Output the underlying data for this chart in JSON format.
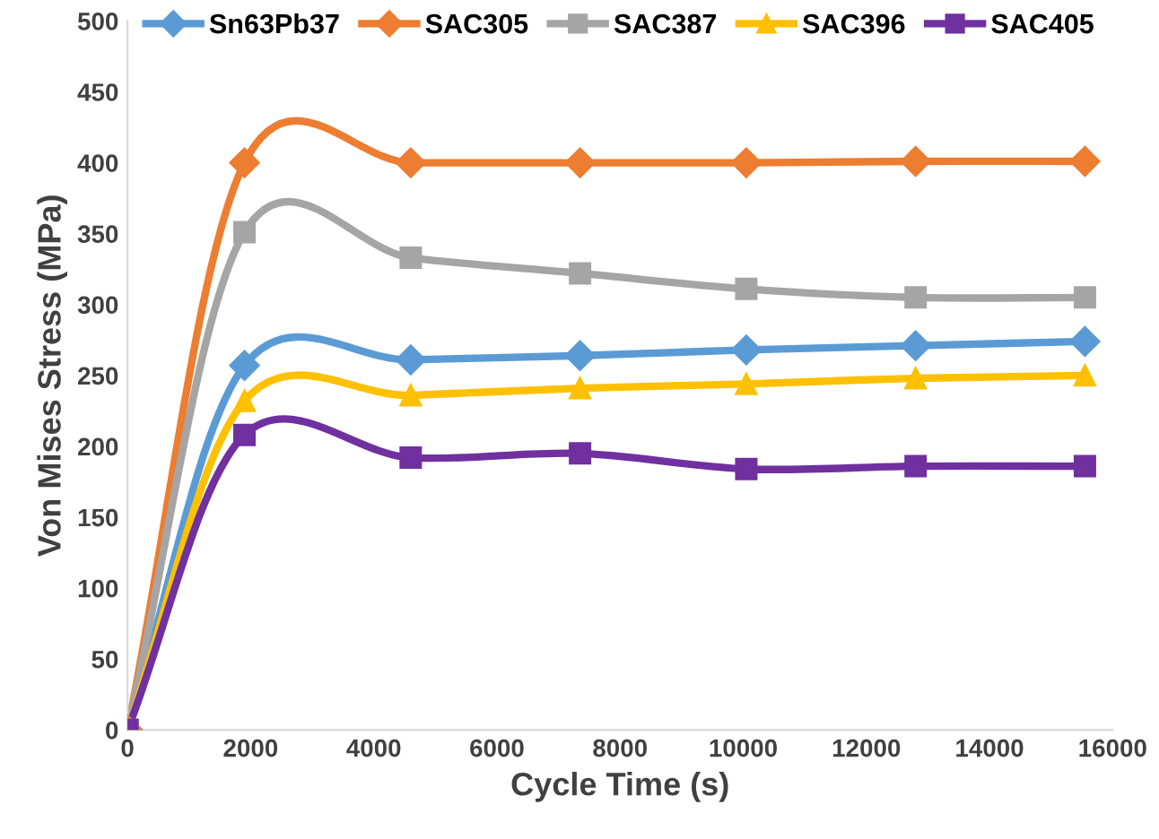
{
  "chart_data": {
    "type": "line",
    "xlabel": "Cycle Time (s)",
    "ylabel": "Von Mises Stress (MPa)",
    "x": [
      0,
      1900,
      4600,
      7350,
      10050,
      12800,
      15550
    ],
    "series": [
      {
        "name": "Sn63Pb37",
        "color": "#5b9bd5",
        "marker": "diamond",
        "values": [
          0,
          257,
          261,
          264,
          268,
          271,
          274
        ]
      },
      {
        "name": "SAC305",
        "color": "#ed7d31",
        "marker": "diamond",
        "values": [
          0,
          400,
          400,
          400,
          400,
          401,
          401
        ]
      },
      {
        "name": "SAC387",
        "color": "#a5a5a5",
        "marker": "square",
        "values": [
          0,
          351,
          333,
          322,
          311,
          305,
          305
        ]
      },
      {
        "name": "SAC396",
        "color": "#ffc000",
        "marker": "triangle",
        "values": [
          0,
          232,
          236,
          241,
          244,
          248,
          250
        ]
      },
      {
        "name": "SAC405",
        "color": "#7030a0",
        "marker": "square",
        "values": [
          0,
          208,
          192,
          195,
          184,
          186,
          186
        ]
      }
    ],
    "xlim": [
      0,
      16000
    ],
    "xticks": [
      0,
      2000,
      4000,
      6000,
      8000,
      10000,
      12000,
      14000,
      16000
    ],
    "ylim": [
      0,
      500
    ],
    "yticks": [
      0,
      50,
      100,
      150,
      200,
      250,
      300,
      350,
      400,
      450,
      500
    ],
    "grid": false,
    "legend": "top",
    "line_style": "solid"
  }
}
